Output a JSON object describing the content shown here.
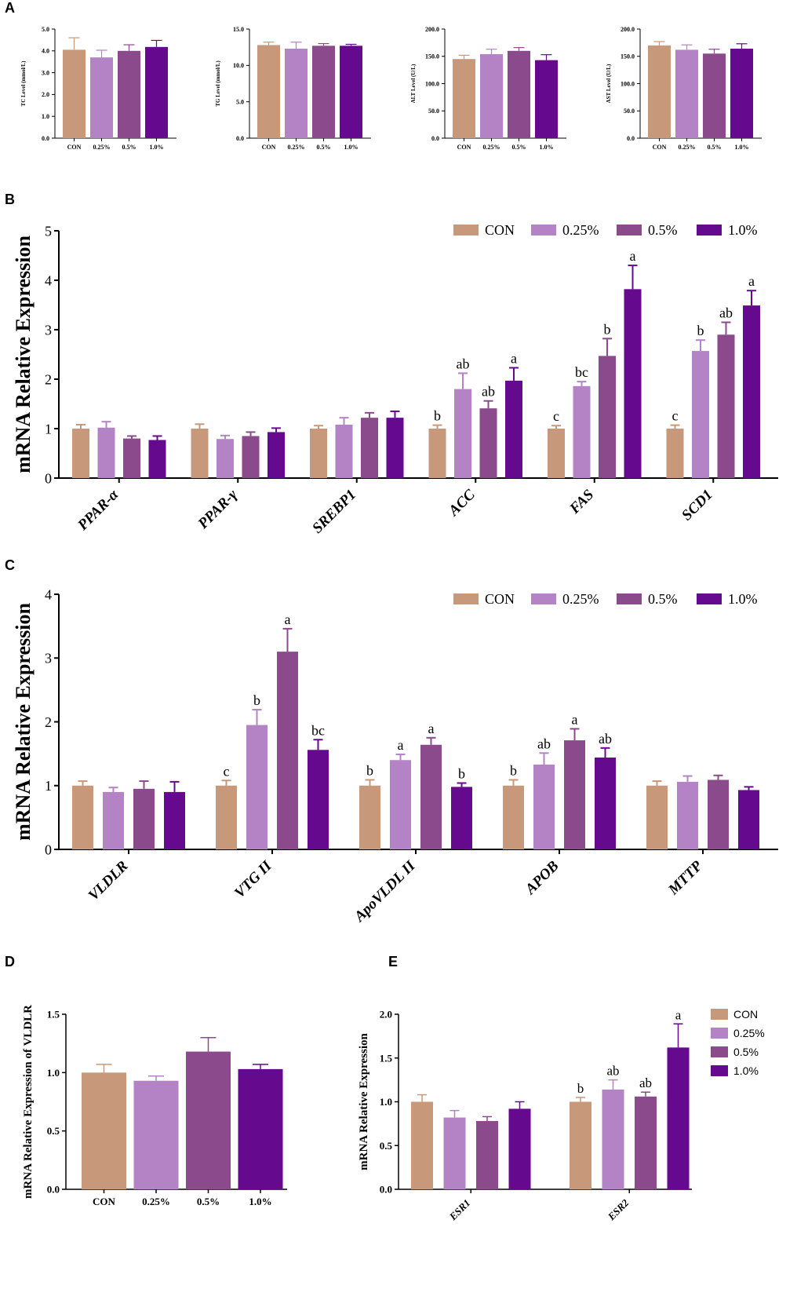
{
  "colors": {
    "CON": "#C8987A",
    "0.25%": "#B383C5",
    "0.5%": "#8B4A8C",
    "1.0%": "#650A8E"
  },
  "panels": {
    "A": "A",
    "B": "B",
    "C": "C",
    "D": "D",
    "E": "E"
  },
  "chart_data": [
    {
      "id": "A1",
      "type": "bar",
      "ylabel": "TC Level (mmol/L)",
      "categories": [
        "CON",
        "0.25%",
        "0.5%",
        "1.0%"
      ],
      "values": [
        4.05,
        3.7,
        4.0,
        4.18
      ],
      "errors": [
        0.55,
        0.33,
        0.28,
        0.3
      ],
      "ylim": [
        0,
        5
      ],
      "ticks": [
        0,
        1,
        2,
        3,
        4,
        5
      ],
      "tick_labels": [
        "0.0",
        "1.0",
        "2.0",
        "3.0",
        "4.0",
        "5.0"
      ]
    },
    {
      "id": "A2",
      "type": "bar",
      "ylabel": "TG Level (mmol/L)",
      "categories": [
        "CON",
        "0.25%",
        "0.5%",
        "1.0%"
      ],
      "values": [
        12.8,
        12.3,
        12.7,
        12.7
      ],
      "errors": [
        0.4,
        0.9,
        0.3,
        0.2
      ],
      "ylim": [
        0,
        15
      ],
      "ticks": [
        0,
        5,
        10,
        15
      ],
      "tick_labels": [
        "0.0",
        "5.0",
        "10.0",
        "15.0"
      ]
    },
    {
      "id": "A3",
      "type": "bar",
      "ylabel": "ALT Level (U/L)",
      "categories": [
        "CON",
        "0.25%",
        "0.5%",
        "1.0%"
      ],
      "values": [
        145,
        154,
        160,
        143
      ],
      "errors": [
        7,
        9,
        6,
        10
      ],
      "ylim": [
        0,
        200
      ],
      "ticks": [
        0,
        50,
        100,
        150,
        200
      ],
      "tick_labels": [
        "0.0",
        "50.0",
        "100.0",
        "150.0",
        "200.0"
      ]
    },
    {
      "id": "A4",
      "type": "bar",
      "ylabel": "AST Level (U/L)",
      "categories": [
        "CON",
        "0.25%",
        "0.5%",
        "1.0%"
      ],
      "values": [
        170,
        162,
        155,
        164
      ],
      "errors": [
        7,
        9,
        8,
        9
      ],
      "ylim": [
        0,
        200
      ],
      "ticks": [
        0,
        50,
        100,
        150,
        200
      ],
      "tick_labels": [
        "0.0",
        "50.0",
        "100.0",
        "150.0",
        "200.0"
      ]
    },
    {
      "id": "B",
      "type": "bar",
      "ylabel": "mRNA Relative Expression",
      "categories": [
        "PPAR-α",
        "PPAR-γ",
        "SREBP1",
        "ACC",
        "FAS",
        "SCD1"
      ],
      "ylim": [
        0,
        5
      ],
      "ticks": [
        0,
        1,
        2,
        3,
        4,
        5
      ],
      "tick_labels": [
        "0",
        "1",
        "2",
        "3",
        "4",
        "5"
      ],
      "legend": [
        "CON",
        "0.25%",
        "0.5%",
        "1.0%"
      ],
      "series": [
        {
          "name": "CON",
          "values": [
            1.0,
            1.0,
            1.0,
            1.0,
            1.0,
            1.0
          ],
          "errors": [
            0.08,
            0.09,
            0.06,
            0.07,
            0.06,
            0.07
          ],
          "letters": [
            "",
            "",
            "",
            "b",
            "c",
            "c"
          ]
        },
        {
          "name": "0.25%",
          "values": [
            1.02,
            0.79,
            1.08,
            1.8,
            1.86,
            2.57
          ],
          "errors": [
            0.12,
            0.07,
            0.14,
            0.32,
            0.09,
            0.22
          ],
          "letters": [
            "",
            "",
            "",
            "ab",
            "bc",
            "b"
          ]
        },
        {
          "name": "0.5%",
          "values": [
            0.8,
            0.85,
            1.22,
            1.41,
            2.47,
            2.9
          ],
          "errors": [
            0.05,
            0.08,
            0.1,
            0.15,
            0.35,
            0.25
          ],
          "letters": [
            "",
            "",
            "",
            "ab",
            "b",
            "ab"
          ]
        },
        {
          "name": "1.0%",
          "values": [
            0.77,
            0.93,
            1.22,
            1.97,
            3.82,
            3.49
          ],
          "errors": [
            0.08,
            0.08,
            0.13,
            0.26,
            0.48,
            0.3
          ],
          "letters": [
            "",
            "",
            "",
            "a",
            "a",
            "a"
          ]
        }
      ]
    },
    {
      "id": "C",
      "type": "bar",
      "ylabel": "mRNA Relative Expression",
      "categories": [
        "VLDLR",
        "VTG II",
        "ApoVLDL II",
        "APOB",
        "MTTP"
      ],
      "ylim": [
        0,
        4
      ],
      "ticks": [
        0,
        1,
        2,
        3,
        4
      ],
      "tick_labels": [
        "0",
        "1",
        "2",
        "3",
        "4"
      ],
      "legend": [
        "CON",
        "0.25%",
        "0.5%",
        "1.0%"
      ],
      "series": [
        {
          "name": "CON",
          "values": [
            1.0,
            1.0,
            1.0,
            1.0,
            1.0
          ],
          "errors": [
            0.07,
            0.08,
            0.09,
            0.09,
            0.07
          ],
          "letters": [
            "",
            "c",
            "b",
            "b",
            ""
          ]
        },
        {
          "name": "0.25%",
          "values": [
            0.9,
            1.95,
            1.4,
            1.33,
            1.06
          ],
          "errors": [
            0.07,
            0.24,
            0.09,
            0.18,
            0.09
          ],
          "letters": [
            "",
            "b",
            "a",
            "ab",
            ""
          ]
        },
        {
          "name": "0.5%",
          "values": [
            0.95,
            3.1,
            1.64,
            1.71,
            1.09
          ],
          "errors": [
            0.12,
            0.36,
            0.11,
            0.18,
            0.07
          ],
          "letters": [
            "",
            "a",
            "a",
            "a",
            ""
          ]
        },
        {
          "name": "1.0%",
          "values": [
            0.9,
            1.56,
            0.98,
            1.44,
            0.93
          ],
          "errors": [
            0.16,
            0.16,
            0.06,
            0.15,
            0.05
          ],
          "letters": [
            "",
            "bc",
            "b",
            "ab",
            ""
          ]
        }
      ]
    },
    {
      "id": "D",
      "type": "bar",
      "ylabel": "mRNA Relative Expression of VLDLR",
      "categories": [
        "CON",
        "0.25%",
        "0.5%",
        "1.0%"
      ],
      "values": [
        1.0,
        0.93,
        1.18,
        1.03
      ],
      "errors": [
        0.07,
        0.04,
        0.12,
        0.04
      ],
      "ylim": [
        0,
        1.5
      ],
      "ticks": [
        0,
        0.5,
        1.0,
        1.5
      ],
      "tick_labels": [
        "0.0",
        "0.5",
        "1.0",
        "1.5"
      ]
    },
    {
      "id": "E",
      "type": "bar",
      "ylabel": "mRNA Relative Expression",
      "categories": [
        "ESR1",
        "ESR2"
      ],
      "ylim": [
        0,
        2
      ],
      "ticks": [
        0,
        0.5,
        1.0,
        1.5,
        2.0
      ],
      "tick_labels": [
        "0.0",
        "0.5",
        "1.0",
        "1.5",
        "2.0"
      ],
      "legend": [
        "CON",
        "0.25%",
        "0.5%",
        "1.0%"
      ],
      "series": [
        {
          "name": "CON",
          "values": [
            1.0,
            1.0
          ],
          "errors": [
            0.08,
            0.05
          ],
          "letters": [
            "",
            "b"
          ]
        },
        {
          "name": "0.25%",
          "values": [
            0.82,
            1.14
          ],
          "errors": [
            0.08,
            0.11
          ],
          "letters": [
            "",
            "ab"
          ]
        },
        {
          "name": "0.5%",
          "values": [
            0.78,
            1.06
          ],
          "errors": [
            0.05,
            0.05
          ],
          "letters": [
            "",
            "ab"
          ]
        },
        {
          "name": "1.0%",
          "values": [
            0.92,
            1.62
          ],
          "errors": [
            0.08,
            0.27
          ],
          "letters": [
            "",
            "a"
          ]
        }
      ]
    }
  ]
}
